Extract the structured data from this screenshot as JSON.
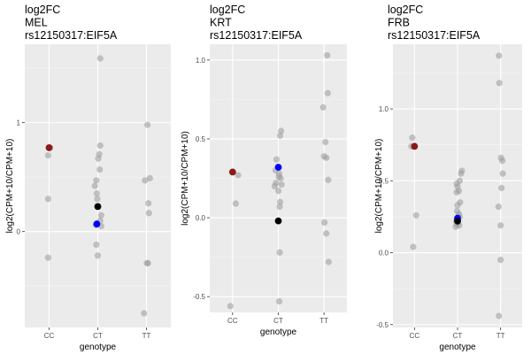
{
  "chart_data": [
    {
      "type": "scatter",
      "title_lines": [
        "log2FC",
        "MEL",
        "rs12150317:EIF5A"
      ],
      "xlabel": "genotype",
      "ylabel": "log2(CPM+10/CPM+10)",
      "categories": [
        "CC",
        "CT",
        "TT"
      ],
      "ylim": [
        -0.88,
        1.72
      ],
      "yticks": [
        0,
        1
      ],
      "yticklabels": [
        "0",
        "1"
      ],
      "grid": true,
      "point_color": "#999999",
      "highlights": [
        {
          "category": "CC",
          "x_offset": 0.0,
          "y": 0.77,
          "color": "#8b1a1a"
        },
        {
          "category": "CT",
          "x_offset": 0.0,
          "y": 0.23,
          "color": "#000000"
        },
        {
          "category": "CT",
          "x_offset": -0.02,
          "y": 0.07,
          "color": "#0000ff"
        }
      ],
      "points": [
        {
          "category": "CC",
          "x_offset": 0.02,
          "y": 0.77
        },
        {
          "category": "CC",
          "x_offset": -0.02,
          "y": 0.7
        },
        {
          "category": "CC",
          "x_offset": -0.02,
          "y": 0.3
        },
        {
          "category": "CC",
          "x_offset": -0.02,
          "y": -0.24
        },
        {
          "category": "CT",
          "x_offset": 0.05,
          "y": 1.59
        },
        {
          "category": "CT",
          "x_offset": 0.05,
          "y": 0.79
        },
        {
          "category": "CT",
          "x_offset": 0.03,
          "y": 0.71
        },
        {
          "category": "CT",
          "x_offset": 0.01,
          "y": 0.67
        },
        {
          "category": "CT",
          "x_offset": 0.04,
          "y": 0.57
        },
        {
          "category": "CT",
          "x_offset": -0.03,
          "y": 0.47
        },
        {
          "category": "CT",
          "x_offset": -0.06,
          "y": 0.42
        },
        {
          "category": "CT",
          "x_offset": -0.02,
          "y": 0.35
        },
        {
          "category": "CT",
          "x_offset": -0.01,
          "y": 0.3
        },
        {
          "category": "CT",
          "x_offset": 0.07,
          "y": 0.15
        },
        {
          "category": "CT",
          "x_offset": 0.05,
          "y": 0.1
        },
        {
          "category": "CT",
          "x_offset": -0.04,
          "y": 0.06
        },
        {
          "category": "CT",
          "x_offset": 0.07,
          "y": 0.05
        },
        {
          "category": "CT",
          "x_offset": -0.03,
          "y": -0.12
        },
        {
          "category": "CT",
          "x_offset": 0.0,
          "y": -0.22
        },
        {
          "category": "TT",
          "x_offset": 0.02,
          "y": 0.98
        },
        {
          "category": "TT",
          "x_offset": -0.03,
          "y": 0.47
        },
        {
          "category": "TT",
          "x_offset": 0.07,
          "y": 0.49
        },
        {
          "category": "TT",
          "x_offset": 0.04,
          "y": 0.26
        },
        {
          "category": "TT",
          "x_offset": 0.05,
          "y": 0.17
        },
        {
          "category": "TT",
          "x_offset": 0.01,
          "y": -0.29
        },
        {
          "category": "TT",
          "x_offset": 0.03,
          "y": -0.29
        },
        {
          "category": "TT",
          "x_offset": -0.05,
          "y": -0.75
        }
      ]
    },
    {
      "type": "scatter",
      "title_lines": [
        "log2FC",
        "KRT",
        "rs12150317:EIF5A"
      ],
      "xlabel": "genotype",
      "ylabel": "log2(CPM+10/CPM+10)",
      "categories": [
        "CC",
        "CT",
        "TT"
      ],
      "ylim": [
        -0.6,
        1.1
      ],
      "yticks": [
        -0.5,
        0.0,
        0.5,
        1.0
      ],
      "yticklabels": [
        "-0.5",
        "0.0",
        "0.5",
        "1.0"
      ],
      "grid": true,
      "point_color": "#999999",
      "highlights": [
        {
          "category": "CC",
          "x_offset": 0.0,
          "y": 0.29,
          "color": "#8b1a1a"
        },
        {
          "category": "CT",
          "x_offset": 0.0,
          "y": 0.32,
          "color": "#0000ff"
        },
        {
          "category": "CT",
          "x_offset": 0.0,
          "y": -0.02,
          "color": "#000000"
        }
      ],
      "points": [
        {
          "category": "CC",
          "x_offset": 0.12,
          "y": 0.27
        },
        {
          "category": "CC",
          "x_offset": 0.07,
          "y": 0.09
        },
        {
          "category": "CC",
          "x_offset": -0.05,
          "y": -0.56
        },
        {
          "category": "CT",
          "x_offset": 0.06,
          "y": 0.55
        },
        {
          "category": "CT",
          "x_offset": 0.04,
          "y": 0.52
        },
        {
          "category": "CT",
          "x_offset": -0.04,
          "y": 0.37
        },
        {
          "category": "CT",
          "x_offset": -0.06,
          "y": 0.3
        },
        {
          "category": "CT",
          "x_offset": 0.02,
          "y": 0.28
        },
        {
          "category": "CT",
          "x_offset": 0.01,
          "y": 0.26
        },
        {
          "category": "CT",
          "x_offset": 0.05,
          "y": 0.25
        },
        {
          "category": "CT",
          "x_offset": -0.05,
          "y": 0.22
        },
        {
          "category": "CT",
          "x_offset": 0.07,
          "y": 0.21
        },
        {
          "category": "CT",
          "x_offset": -0.08,
          "y": 0.2
        },
        {
          "category": "CT",
          "x_offset": 0.0,
          "y": 0.17
        },
        {
          "category": "CT",
          "x_offset": 0.04,
          "y": 0.1
        },
        {
          "category": "CT",
          "x_offset": 0.03,
          "y": 0.07
        },
        {
          "category": "CT",
          "x_offset": 0.03,
          "y": -0.22
        },
        {
          "category": "CT",
          "x_offset": 0.02,
          "y": -0.53
        },
        {
          "category": "TT",
          "x_offset": 0.07,
          "y": 1.03
        },
        {
          "category": "TT",
          "x_offset": 0.08,
          "y": 0.79
        },
        {
          "category": "TT",
          "x_offset": -0.02,
          "y": 0.7
        },
        {
          "category": "TT",
          "x_offset": 0.03,
          "y": 0.48
        },
        {
          "category": "TT",
          "x_offset": 0.0,
          "y": 0.39
        },
        {
          "category": "TT",
          "x_offset": 0.05,
          "y": 0.38
        },
        {
          "category": "TT",
          "x_offset": 0.09,
          "y": 0.24
        },
        {
          "category": "TT",
          "x_offset": 0.01,
          "y": -0.03
        },
        {
          "category": "TT",
          "x_offset": 0.05,
          "y": -0.1
        },
        {
          "category": "TT",
          "x_offset": 0.1,
          "y": -0.28
        }
      ]
    },
    {
      "type": "scatter",
      "title_lines": [
        "log2FC",
        "FRB",
        "rs12150317:EIF5A"
      ],
      "xlabel": "genotype",
      "ylabel": "log2(CPM+10/CPM+10)",
      "categories": [
        "CC",
        "CT",
        "TT"
      ],
      "ylim": [
        -0.52,
        1.45
      ],
      "yticks": [
        -0.5,
        0.0,
        0.5,
        1.0
      ],
      "yticklabels": [
        "-0.5",
        "0.0",
        "0.5",
        "1.0"
      ],
      "grid": true,
      "point_color": "#999999",
      "highlights": [
        {
          "category": "CC",
          "x_offset": 0.0,
          "y": 0.74,
          "color": "#8b1a1a"
        },
        {
          "category": "CT",
          "x_offset": 0.0,
          "y": 0.24,
          "color": "#0000ff"
        },
        {
          "category": "CT",
          "x_offset": 0.0,
          "y": 0.22,
          "color": "#000000"
        }
      ],
      "points": [
        {
          "category": "CC",
          "x_offset": -0.05,
          "y": 0.8
        },
        {
          "category": "CC",
          "x_offset": -0.07,
          "y": 0.74
        },
        {
          "category": "CC",
          "x_offset": 0.04,
          "y": 0.26
        },
        {
          "category": "CC",
          "x_offset": -0.03,
          "y": 0.04
        },
        {
          "category": "CT",
          "x_offset": 0.1,
          "y": 0.57
        },
        {
          "category": "CT",
          "x_offset": 0.08,
          "y": 0.55
        },
        {
          "category": "CT",
          "x_offset": 0.05,
          "y": 0.5
        },
        {
          "category": "CT",
          "x_offset": -0.02,
          "y": 0.48
        },
        {
          "category": "CT",
          "x_offset": 0.0,
          "y": 0.46
        },
        {
          "category": "CT",
          "x_offset": 0.03,
          "y": 0.43
        },
        {
          "category": "CT",
          "x_offset": -0.02,
          "y": 0.42
        },
        {
          "category": "CT",
          "x_offset": 0.06,
          "y": 0.35
        },
        {
          "category": "CT",
          "x_offset": 0.0,
          "y": 0.33
        },
        {
          "category": "CT",
          "x_offset": -0.01,
          "y": 0.29
        },
        {
          "category": "CT",
          "x_offset": 0.03,
          "y": 0.27
        },
        {
          "category": "CT",
          "x_offset": 0.05,
          "y": 0.25
        },
        {
          "category": "CT",
          "x_offset": -0.03,
          "y": 0.22
        },
        {
          "category": "CT",
          "x_offset": 0.01,
          "y": 0.21
        },
        {
          "category": "CT",
          "x_offset": -0.02,
          "y": 0.2
        },
        {
          "category": "CT",
          "x_offset": 0.04,
          "y": 0.19
        },
        {
          "category": "CT",
          "x_offset": -0.04,
          "y": 0.18
        },
        {
          "category": "TT",
          "x_offset": -0.04,
          "y": 1.37
        },
        {
          "category": "TT",
          "x_offset": -0.03,
          "y": 1.18
        },
        {
          "category": "TT",
          "x_offset": 0.01,
          "y": 0.66
        },
        {
          "category": "TT",
          "x_offset": 0.04,
          "y": 0.64
        },
        {
          "category": "TT",
          "x_offset": 0.05,
          "y": 0.55
        },
        {
          "category": "TT",
          "x_offset": 0.02,
          "y": 0.45
        },
        {
          "category": "TT",
          "x_offset": -0.05,
          "y": 0.32
        },
        {
          "category": "TT",
          "x_offset": 0.0,
          "y": 0.19
        },
        {
          "category": "TT",
          "x_offset": 0.0,
          "y": -0.05
        },
        {
          "category": "TT",
          "x_offset": -0.04,
          "y": -0.44
        }
      ]
    }
  ]
}
